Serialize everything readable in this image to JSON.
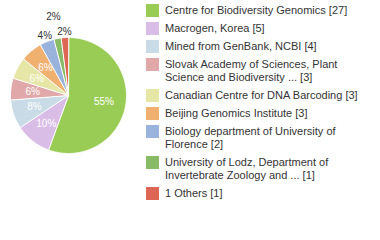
{
  "chart_data": {
    "type": "pie",
    "categories": [
      "Centre for Biodiversity Genomics [27]",
      "Macrogen, Korea [5]",
      "Mined from GenBank, NCBI [4]",
      "Slovak Academy of Sciences, Plant Science and Biodiversity ... [3]",
      "Canadian Centre for DNA Barcoding [3]",
      "Beijing Genomics Institute [3]",
      "Biology department of University of Florence [2]",
      "University of Lodz, Department of Invertebrate Zoology and ... [1]",
      "1 Others [1]"
    ],
    "values": [
      55,
      10,
      8,
      6,
      6,
      6,
      4,
      2,
      2
    ],
    "value_labels": [
      "55%",
      "10%",
      "8%",
      "6%",
      "6%",
      "6%",
      "4%",
      "2%",
      "2%"
    ],
    "colors": [
      "#99cc55",
      "#d9bde6",
      "#c9dbe6",
      "#e0a8a8",
      "#e6e6a6",
      "#f0b070",
      "#99b3dd",
      "#88bb66",
      "#dd6655"
    ],
    "data_labels": true,
    "legend": "right"
  }
}
